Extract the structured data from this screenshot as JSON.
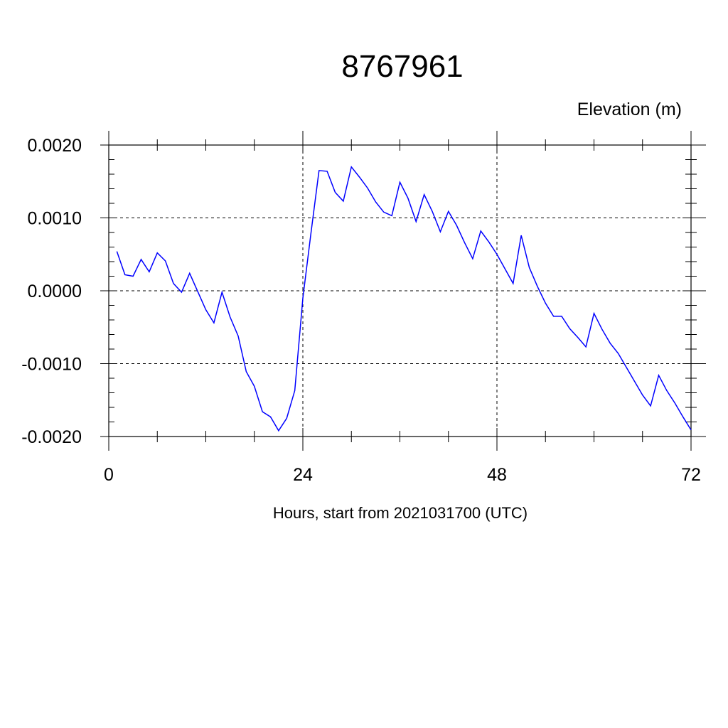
{
  "chart_data": {
    "type": "line",
    "title": "8767961",
    "unit_label": "Elevation (m)",
    "xlabel": "Hours, start from 2021031700 (UTC)",
    "ylabel": "",
    "xlim": [
      0,
      72
    ],
    "ylim": [
      -0.002,
      0.002
    ],
    "x_ticks": [
      0,
      24,
      48,
      72
    ],
    "x_tick_labels": [
      "0",
      "24",
      "48",
      "72"
    ],
    "y_ticks": [
      0.002,
      0.001,
      0.0,
      -0.001,
      -0.002
    ],
    "y_tick_labels": [
      "0.0020",
      "0.0010",
      "0.0000",
      "-0.0010",
      "-0.0020"
    ],
    "grid": true,
    "line_color": "#0000ff",
    "series": [
      {
        "x": [
          1,
          2,
          3,
          4,
          5,
          6,
          7,
          8,
          9,
          10,
          11,
          12,
          13,
          14,
          15,
          16,
          17,
          18,
          19,
          20,
          21,
          22,
          23,
          24,
          25,
          26,
          27,
          28,
          29,
          30,
          31,
          32,
          33,
          34,
          35,
          36,
          37,
          38,
          39,
          40,
          41,
          42,
          43,
          44,
          45,
          46,
          47,
          48,
          49,
          50,
          51,
          52,
          53,
          54,
          55,
          56,
          57,
          58,
          59,
          60,
          61,
          62,
          63,
          64,
          65,
          66,
          67,
          68,
          69,
          70,
          71,
          72
        ],
        "y": [
          0.00054,
          0.00022,
          0.0002,
          0.00043,
          0.00026,
          0.00052,
          0.00041,
          0.0001,
          -2e-05,
          0.00024,
          -1e-05,
          -0.00026,
          -0.00044,
          -2e-05,
          -0.00036,
          -0.00062,
          -0.00111,
          -0.00131,
          -0.00166,
          -0.00173,
          -0.00192,
          -0.00175,
          -0.00137,
          -0.0001,
          0.00079,
          0.00165,
          0.00164,
          0.00135,
          0.00123,
          0.0017,
          0.00156,
          0.00141,
          0.00122,
          0.00108,
          0.00103,
          0.00149,
          0.00127,
          0.00095,
          0.00132,
          0.00109,
          0.00081,
          0.00109,
          0.0009,
          0.00066,
          0.00044,
          0.00082,
          0.00067,
          0.0005,
          0.0003,
          0.0001,
          0.00076,
          0.00032,
          6e-05,
          -0.00017,
          -0.00035,
          -0.00035,
          -0.00052,
          -0.00064,
          -0.00077,
          -0.00031,
          -0.00053,
          -0.00072,
          -0.00086,
          -0.00105,
          -0.00124,
          -0.00143,
          -0.00158,
          -0.00116,
          -0.00137,
          -0.00154,
          -0.00173,
          -0.00191
        ]
      }
    ]
  }
}
